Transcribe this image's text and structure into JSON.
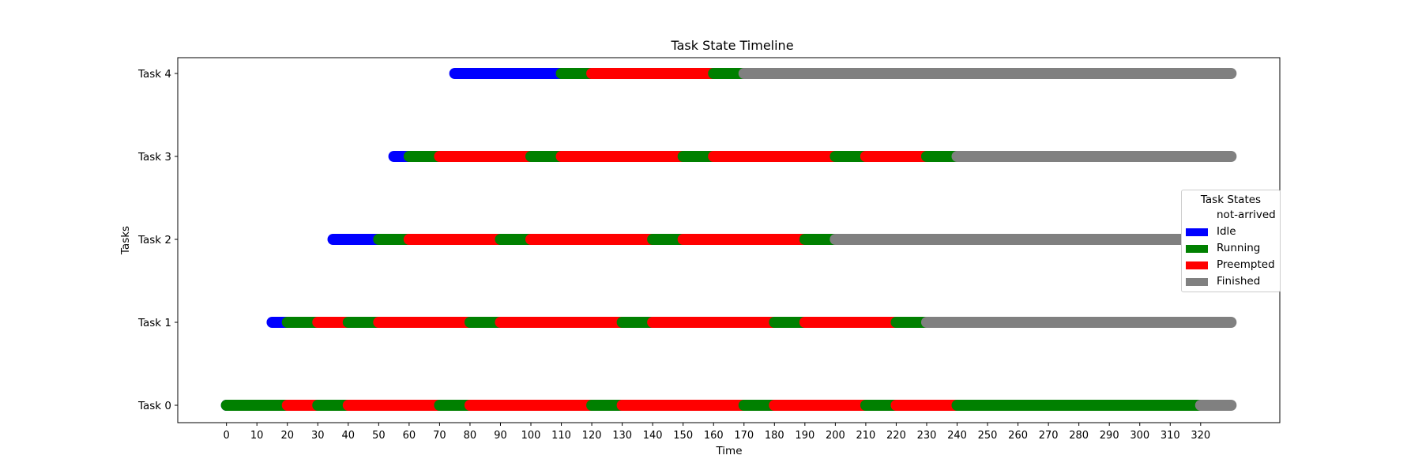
{
  "chart_data": {
    "type": "gantt",
    "title": "Task State Timeline",
    "xlabel": "Time",
    "ylabel": "Tasks",
    "xlim": [
      -16,
      346
    ],
    "x_ticks": [
      0,
      10,
      20,
      30,
      40,
      50,
      60,
      70,
      80,
      90,
      100,
      110,
      120,
      130,
      140,
      150,
      160,
      170,
      180,
      190,
      200,
      210,
      220,
      230,
      240,
      250,
      260,
      270,
      280,
      290,
      300,
      310,
      320
    ],
    "grid": false,
    "legend": {
      "title": "Task States",
      "placement": "right",
      "entries": [
        {
          "label": "not-arrived",
          "color": "#ffffff"
        },
        {
          "label": "Idle",
          "color": "#0000ff"
        },
        {
          "label": "Running",
          "color": "#008000"
        },
        {
          "label": "Preempted",
          "color": "#ff0000"
        },
        {
          "label": "Finished",
          "color": "#808080"
        }
      ]
    },
    "tasks": [
      {
        "name": "Task 0",
        "segments": [
          {
            "state": "Idle",
            "start": 0,
            "end": 0
          },
          {
            "state": "Running",
            "start": 0,
            "end": 20
          },
          {
            "state": "Preempted",
            "start": 20,
            "end": 30
          },
          {
            "state": "Running",
            "start": 30,
            "end": 40
          },
          {
            "state": "Preempted",
            "start": 40,
            "end": 70
          },
          {
            "state": "Running",
            "start": 70,
            "end": 80
          },
          {
            "state": "Preempted",
            "start": 80,
            "end": 120
          },
          {
            "state": "Running",
            "start": 120,
            "end": 130
          },
          {
            "state": "Preempted",
            "start": 130,
            "end": 170
          },
          {
            "state": "Running",
            "start": 170,
            "end": 180
          },
          {
            "state": "Preempted",
            "start": 180,
            "end": 210
          },
          {
            "state": "Running",
            "start": 210,
            "end": 220
          },
          {
            "state": "Preempted",
            "start": 220,
            "end": 240
          },
          {
            "state": "Running",
            "start": 240,
            "end": 320
          },
          {
            "state": "Finished",
            "start": 320,
            "end": 330
          }
        ]
      },
      {
        "name": "Task 1",
        "segments": [
          {
            "state": "Idle",
            "start": 15,
            "end": 20
          },
          {
            "state": "Running",
            "start": 20,
            "end": 30
          },
          {
            "state": "Preempted",
            "start": 30,
            "end": 40
          },
          {
            "state": "Running",
            "start": 40,
            "end": 50
          },
          {
            "state": "Preempted",
            "start": 50,
            "end": 80
          },
          {
            "state": "Running",
            "start": 80,
            "end": 90
          },
          {
            "state": "Preempted",
            "start": 90,
            "end": 130
          },
          {
            "state": "Running",
            "start": 130,
            "end": 140
          },
          {
            "state": "Preempted",
            "start": 140,
            "end": 180
          },
          {
            "state": "Running",
            "start": 180,
            "end": 190
          },
          {
            "state": "Preempted",
            "start": 190,
            "end": 220
          },
          {
            "state": "Running",
            "start": 220,
            "end": 230
          },
          {
            "state": "Finished",
            "start": 230,
            "end": 330
          }
        ]
      },
      {
        "name": "Task 2",
        "segments": [
          {
            "state": "Idle",
            "start": 35,
            "end": 50
          },
          {
            "state": "Running",
            "start": 50,
            "end": 60
          },
          {
            "state": "Preempted",
            "start": 60,
            "end": 90
          },
          {
            "state": "Running",
            "start": 90,
            "end": 100
          },
          {
            "state": "Preempted",
            "start": 100,
            "end": 140
          },
          {
            "state": "Running",
            "start": 140,
            "end": 150
          },
          {
            "state": "Preempted",
            "start": 150,
            "end": 190
          },
          {
            "state": "Running",
            "start": 190,
            "end": 200
          },
          {
            "state": "Finished",
            "start": 200,
            "end": 330
          }
        ]
      },
      {
        "name": "Task 3",
        "segments": [
          {
            "state": "Idle",
            "start": 55,
            "end": 60
          },
          {
            "state": "Running",
            "start": 60,
            "end": 70
          },
          {
            "state": "Preempted",
            "start": 70,
            "end": 100
          },
          {
            "state": "Running",
            "start": 100,
            "end": 110
          },
          {
            "state": "Preempted",
            "start": 110,
            "end": 150
          },
          {
            "state": "Running",
            "start": 150,
            "end": 160
          },
          {
            "state": "Preempted",
            "start": 160,
            "end": 200
          },
          {
            "state": "Running",
            "start": 200,
            "end": 210
          },
          {
            "state": "Preempted",
            "start": 210,
            "end": 230
          },
          {
            "state": "Running",
            "start": 230,
            "end": 240
          },
          {
            "state": "Finished",
            "start": 240,
            "end": 330
          }
        ]
      },
      {
        "name": "Task 4",
        "segments": [
          {
            "state": "Idle",
            "start": 75,
            "end": 110
          },
          {
            "state": "Running",
            "start": 110,
            "end": 120
          },
          {
            "state": "Preempted",
            "start": 120,
            "end": 160
          },
          {
            "state": "Running",
            "start": 160,
            "end": 170
          },
          {
            "state": "Finished",
            "start": 170,
            "end": 330
          }
        ]
      }
    ]
  }
}
